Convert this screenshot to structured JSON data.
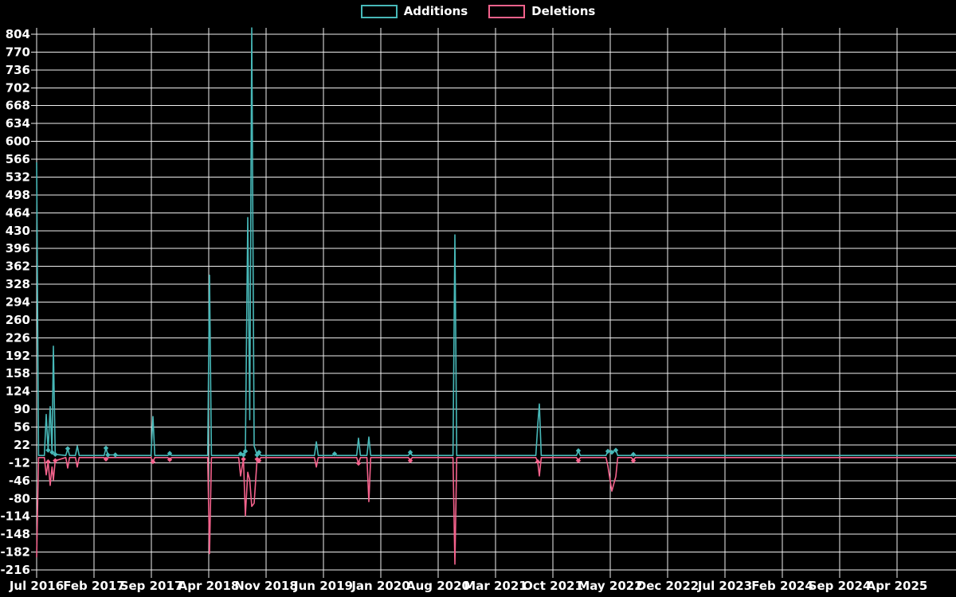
{
  "colors": {
    "background": "#000000",
    "grid": "#efefef",
    "text": "#ffffff",
    "additions": "#47b8b8",
    "deletions": "#f4628c"
  },
  "legend": [
    {
      "label": "Additions",
      "color": "#47b8b8"
    },
    {
      "label": "Deletions",
      "color": "#f4628c"
    }
  ],
  "chart_data": {
    "type": "line",
    "title": "",
    "xlabel": "",
    "ylabel": "",
    "grid": true,
    "legend_position": "top-center",
    "x_axis": {
      "unit": "months since Jul 2016",
      "tick_labels": [
        "Jul 2016",
        "Feb 2017",
        "Sep 2017",
        "Apr 2018",
        "Nov 2018",
        "Jun 2019",
        "Jan 2020",
        "Aug 2020",
        "Mar 2021",
        "Oct 2021",
        "May 2022",
        "Dec 2022",
        "Jul 2023",
        "Feb 2024",
        "Sep 2024",
        "Apr 2025"
      ],
      "tick_positions": [
        0,
        7,
        14,
        21,
        28,
        35,
        42,
        49,
        56,
        63,
        70,
        77,
        84,
        91,
        98,
        105
      ],
      "range": [
        0,
        112.2
      ]
    },
    "y_axis": {
      "tick_labels": [
        "804",
        "770",
        "736",
        "702",
        "668",
        "634",
        "600",
        "566",
        "532",
        "498",
        "464",
        "430",
        "396",
        "362",
        "328",
        "294",
        "260",
        "226",
        "192",
        "158",
        "124",
        "90",
        "56",
        "22",
        "-12",
        "-46",
        "-80",
        "-114",
        "-148",
        "-182",
        "-216"
      ],
      "tick_values": [
        804,
        770,
        736,
        702,
        668,
        634,
        600,
        566,
        532,
        498,
        464,
        430,
        396,
        362,
        328,
        294,
        260,
        226,
        192,
        158,
        124,
        90,
        56,
        22,
        -12,
        -46,
        -80,
        -114,
        -148,
        -182,
        -216
      ],
      "range": [
        -216,
        816
      ]
    },
    "series": [
      {
        "name": "Additions",
        "color": "#47b8b8",
        "points": [
          [
            0,
            560
          ],
          [
            0.23,
            2
          ],
          [
            0.94,
            2
          ],
          [
            1.17,
            80
          ],
          [
            1.4,
            12
          ],
          [
            1.65,
            95
          ],
          [
            1.88,
            8
          ],
          [
            2.04,
            210
          ],
          [
            2.27,
            4
          ],
          [
            3.56,
            2
          ],
          [
            3.79,
            15
          ],
          [
            4.02,
            2
          ],
          [
            4.73,
            2
          ],
          [
            4.96,
            20
          ],
          [
            5.19,
            2
          ],
          [
            8.23,
            2
          ],
          [
            8.46,
            16
          ],
          [
            8.69,
            3
          ],
          [
            9.6,
            3
          ],
          [
            9.83,
            2
          ],
          [
            13.96,
            2
          ],
          [
            14.19,
            76
          ],
          [
            14.42,
            2
          ],
          [
            16.01,
            2
          ],
          [
            16.24,
            6
          ],
          [
            16.47,
            2
          ],
          [
            20.87,
            2
          ],
          [
            21.1,
            345
          ],
          [
            21.33,
            2
          ],
          [
            24.66,
            2
          ],
          [
            24.89,
            5
          ],
          [
            25.24,
            3
          ],
          [
            25.47,
            10
          ],
          [
            25.76,
            455
          ],
          [
            26.01,
            70
          ],
          [
            26.25,
            816
          ],
          [
            26.54,
            20
          ],
          [
            26.9,
            3
          ],
          [
            27.13,
            8
          ],
          [
            27.36,
            2
          ],
          [
            33.9,
            2
          ],
          [
            34.13,
            28
          ],
          [
            34.36,
            2
          ],
          [
            36.13,
            2
          ],
          [
            36.36,
            5
          ],
          [
            36.59,
            2
          ],
          [
            39.05,
            2
          ],
          [
            39.28,
            35
          ],
          [
            39.51,
            2
          ],
          [
            40.31,
            2
          ],
          [
            40.54,
            37
          ],
          [
            40.77,
            2
          ],
          [
            45.37,
            2
          ],
          [
            45.6,
            8
          ],
          [
            45.83,
            2
          ],
          [
            50.81,
            2
          ],
          [
            51.04,
            422
          ],
          [
            51.27,
            2
          ],
          [
            60.92,
            2
          ],
          [
            61.15,
            60
          ],
          [
            61.35,
            100
          ],
          [
            61.58,
            2
          ],
          [
            65.88,
            2
          ],
          [
            66.11,
            11
          ],
          [
            66.34,
            2
          ],
          [
            69.48,
            2
          ],
          [
            69.71,
            10
          ],
          [
            70.19,
            8
          ],
          [
            70.68,
            12
          ],
          [
            70.91,
            2
          ],
          [
            72.59,
            2
          ],
          [
            72.82,
            4
          ],
          [
            73.05,
            2
          ],
          [
            112.2,
            2
          ]
        ]
      },
      {
        "name": "Deletions",
        "color": "#f4628c",
        "points": [
          [
            0,
            -192
          ],
          [
            0.23,
            -2
          ],
          [
            0.94,
            -2
          ],
          [
            1.17,
            -35
          ],
          [
            1.4,
            -10
          ],
          [
            1.65,
            -55
          ],
          [
            1.88,
            -20
          ],
          [
            2.04,
            -45
          ],
          [
            2.27,
            -8
          ],
          [
            3.56,
            -2
          ],
          [
            3.79,
            -22
          ],
          [
            4.02,
            -2
          ],
          [
            4.73,
            -2
          ],
          [
            4.96,
            -20
          ],
          [
            5.19,
            -2
          ],
          [
            8.23,
            -2
          ],
          [
            8.46,
            -5
          ],
          [
            8.69,
            -2
          ],
          [
            13.96,
            -2
          ],
          [
            14.19,
            -10
          ],
          [
            14.42,
            -2
          ],
          [
            16.01,
            -2
          ],
          [
            16.24,
            -6
          ],
          [
            16.47,
            -2
          ],
          [
            20.87,
            -2
          ],
          [
            21.1,
            -185
          ],
          [
            21.33,
            -2
          ],
          [
            24.66,
            -2
          ],
          [
            24.89,
            -37
          ],
          [
            25.24,
            -5
          ],
          [
            25.47,
            -113
          ],
          [
            25.76,
            -30
          ],
          [
            26.01,
            -45
          ],
          [
            26.25,
            -95
          ],
          [
            26.54,
            -89
          ],
          [
            26.9,
            -5
          ],
          [
            27.13,
            -8
          ],
          [
            27.36,
            -2
          ],
          [
            33.9,
            -2
          ],
          [
            34.13,
            -20
          ],
          [
            34.36,
            -2
          ],
          [
            39.05,
            -2
          ],
          [
            39.28,
            -13
          ],
          [
            39.51,
            -2
          ],
          [
            40.31,
            -2
          ],
          [
            40.54,
            -86
          ],
          [
            40.77,
            -2
          ],
          [
            45.37,
            -2
          ],
          [
            45.6,
            -8
          ],
          [
            45.83,
            -2
          ],
          [
            50.81,
            -2
          ],
          [
            51.04,
            -205
          ],
          [
            51.27,
            -2
          ],
          [
            60.92,
            -2
          ],
          [
            61.15,
            -10
          ],
          [
            61.35,
            -37
          ],
          [
            61.58,
            -2
          ],
          [
            65.88,
            -2
          ],
          [
            66.11,
            -8
          ],
          [
            66.34,
            -2
          ],
          [
            69.48,
            -2
          ],
          [
            69.71,
            -18
          ],
          [
            70.19,
            -66
          ],
          [
            70.68,
            -38
          ],
          [
            70.91,
            -2
          ],
          [
            72.59,
            -2
          ],
          [
            72.82,
            -8
          ],
          [
            73.05,
            -2
          ],
          [
            112.2,
            -2
          ]
        ]
      }
    ]
  }
}
